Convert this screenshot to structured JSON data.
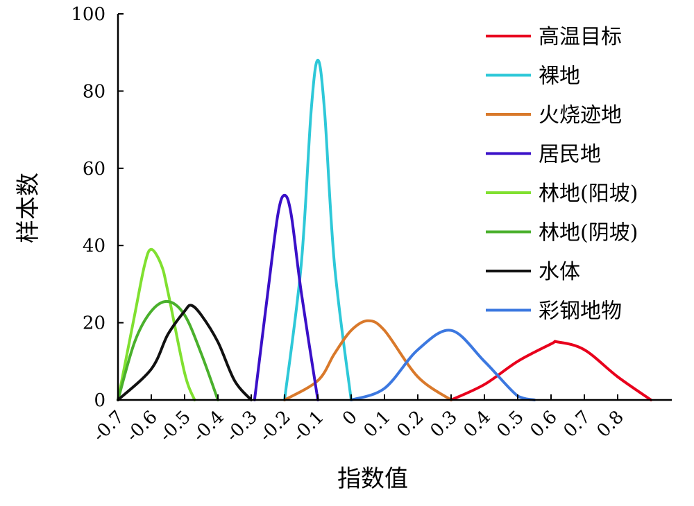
{
  "chart_data": {
    "type": "line",
    "title": "",
    "xlabel": "指数值",
    "ylabel": "样本数",
    "xlim": [
      -0.7,
      0.9
    ],
    "ylim": [
      0,
      100
    ],
    "x_ticks": [
      "-0.7",
      "-0.6",
      "-0.5",
      "-0.4",
      "-0.3",
      "-0.2",
      "-0.1",
      "0",
      "0.1",
      "0.2",
      "0.3",
      "0.4",
      "0.5",
      "0.6",
      "0.7",
      "0.8"
    ],
    "y_ticks": [
      "0",
      "20",
      "40",
      "60",
      "80",
      "100"
    ],
    "grid": false,
    "legend_position": "top-right",
    "series": [
      {
        "name": "高温目标",
        "color": "#e8001c",
        "x": [
          0.3,
          0.4,
          0.5,
          0.6,
          0.62,
          0.7,
          0.8,
          0.9
        ],
        "y": [
          0,
          4,
          10,
          14.5,
          15,
          13,
          6,
          0
        ]
      },
      {
        "name": "裸地",
        "color": "#2ec8d8",
        "x": [
          -0.2,
          -0.15,
          -0.12,
          -0.1,
          -0.08,
          -0.05,
          0
        ],
        "y": [
          0,
          35,
          75,
          88,
          75,
          35,
          0
        ]
      },
      {
        "name": "火烧迹地",
        "color": "#d9792b",
        "x": [
          -0.2,
          -0.1,
          -0.05,
          0,
          0.05,
          0.1,
          0.2,
          0.3
        ],
        "y": [
          0,
          5,
          12,
          18,
          20.5,
          18,
          6,
          0
        ]
      },
      {
        "name": "居民地",
        "color": "#3a10c8",
        "x": [
          -0.29,
          -0.25,
          -0.22,
          -0.2,
          -0.18,
          -0.15,
          -0.1
        ],
        "y": [
          0,
          28,
          48,
          53,
          48,
          28,
          0
        ]
      },
      {
        "name": "林地(阳坡)",
        "color": "#80e030",
        "x": [
          -0.7,
          -0.65,
          -0.62,
          -0.6,
          -0.57,
          -0.55,
          -0.5,
          -0.47
        ],
        "y": [
          0,
          22,
          35,
          39,
          35,
          28,
          7,
          0
        ]
      },
      {
        "name": "林地(阴坡)",
        "color": "#4ab02c",
        "x": [
          -0.7,
          -0.65,
          -0.6,
          -0.55,
          -0.5,
          -0.45,
          -0.4
        ],
        "y": [
          0,
          15,
          23,
          25.5,
          22,
          12,
          0
        ]
      },
      {
        "name": "水体",
        "color": "#111111",
        "x": [
          -0.7,
          -0.6,
          -0.55,
          -0.5,
          -0.48,
          -0.45,
          -0.4,
          -0.35,
          -0.3
        ],
        "y": [
          0,
          8,
          17,
          23,
          24.5,
          22,
          15,
          5,
          0
        ]
      },
      {
        "name": "彩钢地物",
        "color": "#3c78e0",
        "x": [
          0,
          0.1,
          0.2,
          0.3,
          0.4,
          0.5,
          0.55
        ],
        "y": [
          0,
          3,
          13,
          18,
          10,
          1,
          0
        ]
      }
    ]
  }
}
